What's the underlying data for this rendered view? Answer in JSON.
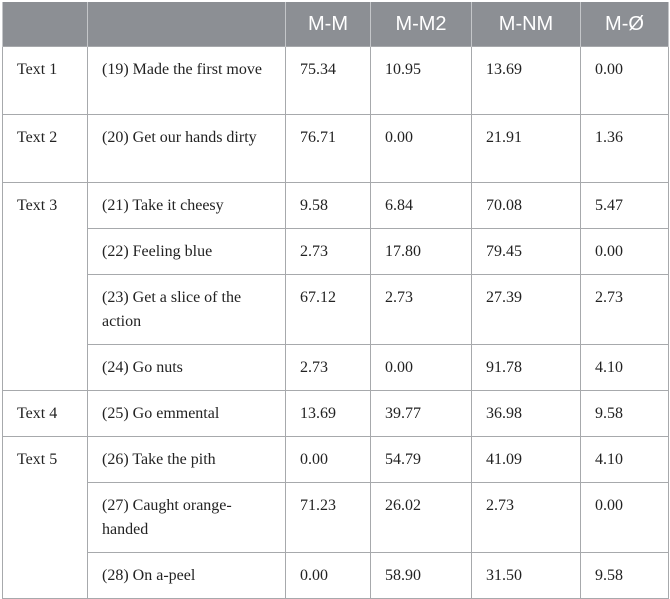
{
  "table": {
    "headers": [
      "",
      "",
      "M-M",
      "M-M2",
      "M-NM",
      "M-Ø"
    ],
    "groups": [
      {
        "text": "Text 1",
        "rows": [
          {
            "phrase": "(19) Made the first move",
            "values": [
              "75.34",
              "10.95",
              "13.69",
              "0.00"
            ]
          }
        ]
      },
      {
        "text": "Text 2",
        "rows": [
          {
            "phrase": "(20) Get our hands dirty",
            "values": [
              "76.71",
              "0.00",
              "21.91",
              "1.36"
            ]
          }
        ]
      },
      {
        "text": "Text 3",
        "rows": [
          {
            "phrase": "(21) Take it cheesy",
            "values": [
              "9.58",
              "6.84",
              "70.08",
              "5.47"
            ]
          },
          {
            "phrase": "(22) Feeling blue",
            "values": [
              "2.73",
              "17.80",
              "79.45",
              "0.00"
            ]
          },
          {
            "phrase": "(23) Get a slice of the action",
            "values": [
              "67.12",
              "2.73",
              "27.39",
              "2.73"
            ]
          },
          {
            "phrase": "(24) Go nuts",
            "values": [
              "2.73",
              "0.00",
              "91.78",
              "4.10"
            ]
          }
        ]
      },
      {
        "text": "Text 4",
        "rows": [
          {
            "phrase": "(25) Go emmental",
            "values": [
              "13.69",
              "39.77",
              "36.98",
              "9.58"
            ]
          }
        ]
      },
      {
        "text": "Text 5",
        "rows": [
          {
            "phrase": "(26) Take the pith",
            "values": [
              "0.00",
              "54.79",
              "41.09",
              "4.10"
            ]
          },
          {
            "phrase": "(27) Caught orange-handed",
            "values": [
              "71.23",
              "26.02",
              "2.73",
              "0.00"
            ]
          },
          {
            "phrase": "(28) On a-peel",
            "values": [
              "0.00",
              "58.90",
              "31.50",
              "9.58"
            ]
          }
        ]
      }
    ]
  }
}
